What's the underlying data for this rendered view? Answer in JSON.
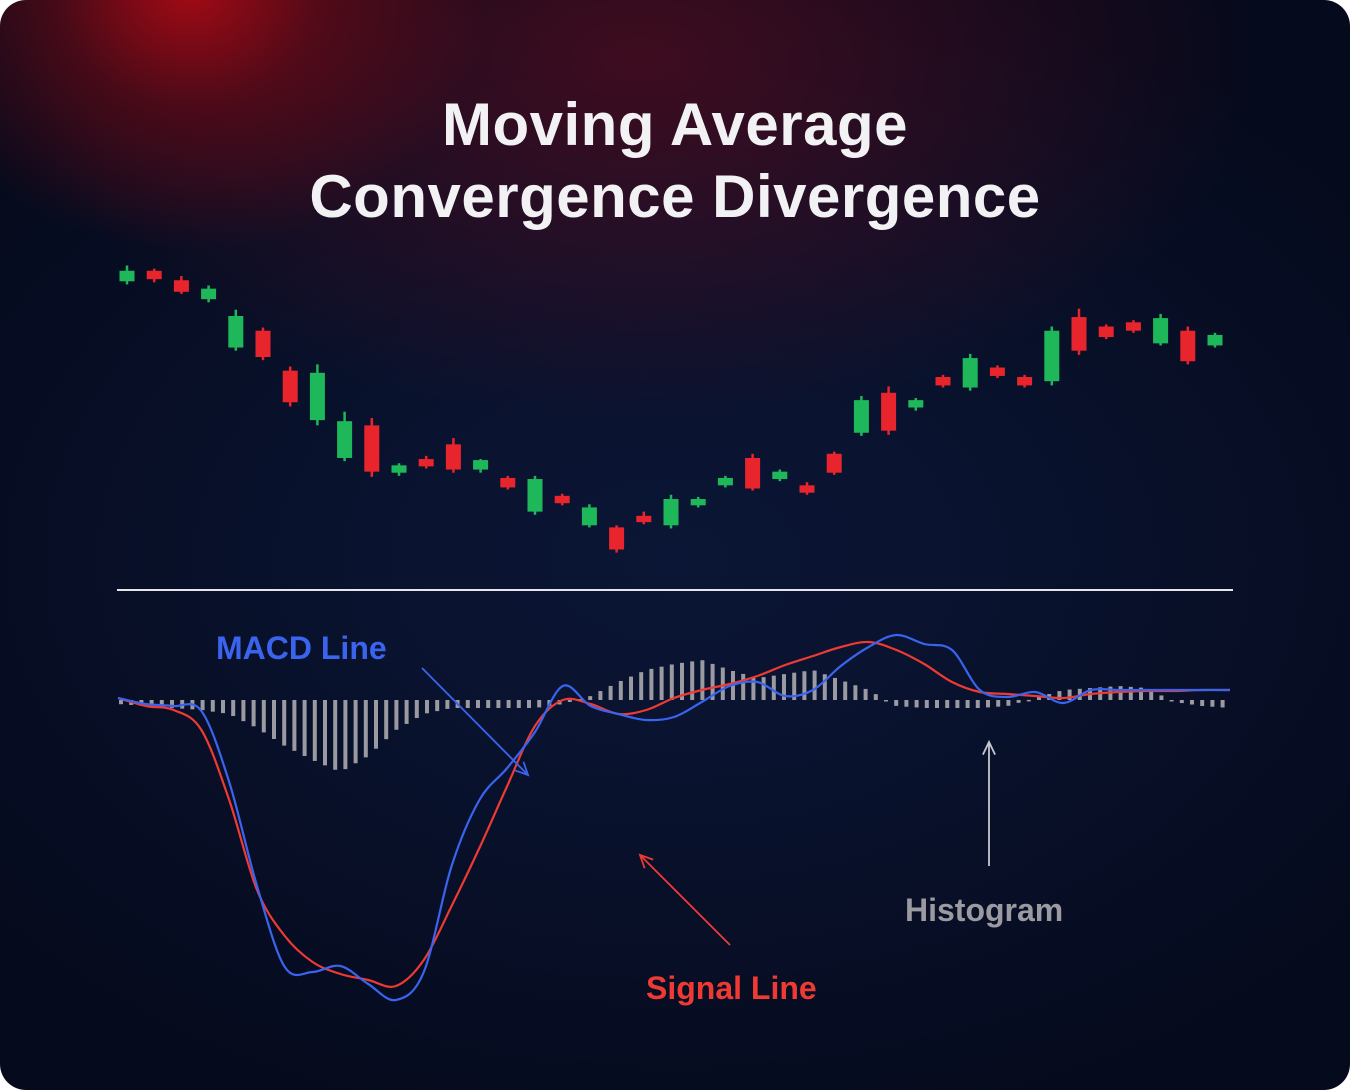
{
  "title_line1": "Moving Average",
  "title_line2": "Convergence Divergence",
  "colors": {
    "up": "#1eb85a",
    "down": "#e8252c",
    "macd": "#3a63ee",
    "signal": "#ee3a33",
    "histogram": "#9a9aa0",
    "divider": "#e6e6ea"
  },
  "chart_data": [
    {
      "type": "candlestick",
      "candles": [
        {
          "open": 25.5,
          "close": 26.5,
          "high": 27.0,
          "low": 25.2
        },
        {
          "open": 26.5,
          "close": 25.7,
          "high": 26.7,
          "low": 25.4
        },
        {
          "open": 25.6,
          "close": 24.5,
          "high": 26.0,
          "low": 24.3
        },
        {
          "open": 23.8,
          "close": 24.8,
          "high": 25.1,
          "low": 23.5
        },
        {
          "open": 19.2,
          "close": 22.2,
          "high": 22.8,
          "low": 18.9
        },
        {
          "open": 20.8,
          "close": 18.3,
          "high": 21.1,
          "low": 18.0
        },
        {
          "open": 17.0,
          "close": 14.0,
          "high": 17.4,
          "low": 13.6
        },
        {
          "open": 12.3,
          "close": 16.8,
          "high": 17.6,
          "low": 11.8
        },
        {
          "open": 8.7,
          "close": 12.2,
          "high": 13.1,
          "low": 8.4
        },
        {
          "open": 11.8,
          "close": 7.4,
          "high": 12.5,
          "low": 6.9
        },
        {
          "open": 7.3,
          "close": 8.0,
          "high": 8.2,
          "low": 7.0
        },
        {
          "open": 8.6,
          "close": 7.9,
          "high": 8.9,
          "low": 7.7
        },
        {
          "open": 10.0,
          "close": 7.6,
          "high": 10.6,
          "low": 7.3
        },
        {
          "open": 7.6,
          "close": 8.5,
          "high": 8.6,
          "low": 7.3
        },
        {
          "open": 6.8,
          "close": 5.9,
          "high": 7.0,
          "low": 5.7
        },
        {
          "open": 3.6,
          "close": 6.7,
          "high": 7.0,
          "low": 3.3
        },
        {
          "open": 5.1,
          "close": 4.4,
          "high": 5.3,
          "low": 4.2
        },
        {
          "open": 2.3,
          "close": 4.0,
          "high": 4.3,
          "low": 2.1
        },
        {
          "open": 2.1,
          "close": 0.0,
          "high": 2.3,
          "low": -0.3
        },
        {
          "open": 3.2,
          "close": 2.6,
          "high": 3.6,
          "low": 2.4
        },
        {
          "open": 2.3,
          "close": 4.8,
          "high": 5.2,
          "low": 2.0
        },
        {
          "open": 4.2,
          "close": 4.8,
          "high": 5.0,
          "low": 4.0
        },
        {
          "open": 6.1,
          "close": 6.8,
          "high": 7.0,
          "low": 5.9
        },
        {
          "open": 8.7,
          "close": 5.8,
          "high": 9.1,
          "low": 5.6
        },
        {
          "open": 6.7,
          "close": 7.4,
          "high": 7.6,
          "low": 6.5
        },
        {
          "open": 6.1,
          "close": 5.4,
          "high": 6.4,
          "low": 5.2
        },
        {
          "open": 9.1,
          "close": 7.3,
          "high": 9.3,
          "low": 7.1
        },
        {
          "open": 11.1,
          "close": 14.2,
          "high": 14.6,
          "low": 10.8
        },
        {
          "open": 14.9,
          "close": 11.3,
          "high": 15.5,
          "low": 10.9
        },
        {
          "open": 13.5,
          "close": 14.2,
          "high": 14.4,
          "low": 13.2
        },
        {
          "open": 16.4,
          "close": 15.6,
          "high": 16.6,
          "low": 15.4
        },
        {
          "open": 15.4,
          "close": 18.2,
          "high": 18.6,
          "low": 15.1
        },
        {
          "open": 17.3,
          "close": 16.5,
          "high": 17.5,
          "low": 16.3
        },
        {
          "open": 16.4,
          "close": 15.6,
          "high": 16.6,
          "low": 15.4
        },
        {
          "open": 16.0,
          "close": 20.8,
          "high": 21.2,
          "low": 15.6
        },
        {
          "open": 22.1,
          "close": 18.9,
          "high": 22.9,
          "low": 18.5
        },
        {
          "open": 21.2,
          "close": 20.2,
          "high": 21.4,
          "low": 20.0
        },
        {
          "open": 21.6,
          "close": 20.8,
          "high": 21.8,
          "low": 20.6
        },
        {
          "open": 19.6,
          "close": 22.0,
          "high": 22.4,
          "low": 19.4
        },
        {
          "open": 20.8,
          "close": 17.9,
          "high": 21.2,
          "low": 17.6
        },
        {
          "open": 19.4,
          "close": 20.4,
          "high": 20.6,
          "low": 19.2
        }
      ],
      "ylim": [
        -1,
        28
      ]
    },
    {
      "type": "line",
      "ylim": [
        -32,
        10
      ],
      "x": [
        0,
        1,
        2,
        3,
        4,
        5,
        6,
        7,
        8,
        9,
        10,
        11,
        12,
        13,
        14,
        15,
        16,
        17,
        18,
        19,
        20,
        21,
        22,
        23,
        24,
        25,
        26,
        27,
        28,
        29,
        30,
        31,
        32,
        33,
        34,
        35,
        36,
        37,
        38,
        39,
        40
      ],
      "series": [
        {
          "name": "MACD Line",
          "values": [
            0.2,
            -0.4,
            -0.6,
            -1.1,
            -8.2,
            -18.6,
            -26.7,
            -27.2,
            -26.6,
            -28.4,
            -30.0,
            -27.2,
            -16.6,
            -10.0,
            -6.8,
            -3.2,
            1.4,
            -0.6,
            -1.4,
            -2.0,
            -1.7,
            -0.2,
            1.4,
            1.8,
            0.4,
            1.0,
            3.4,
            5.3,
            6.5,
            5.6,
            5.0,
            1.0,
            0.3,
            0.8,
            -0.3,
            1.0,
            1.0,
            1.0,
            1.0,
            1.0,
            1.0
          ]
        },
        {
          "name": "Signal Line",
          "values": [
            0.2,
            -0.6,
            -1.0,
            -3.0,
            -10.0,
            -19.0,
            -23.6,
            -26.2,
            -27.4,
            -28.0,
            -28.6,
            -26.0,
            -20.6,
            -14.8,
            -8.6,
            -2.6,
            0.0,
            -0.4,
            -1.4,
            -1.0,
            0.2,
            1.0,
            1.6,
            2.4,
            3.5,
            4.4,
            5.3,
            5.8,
            5.0,
            3.6,
            1.8,
            0.8,
            0.6,
            0.4,
            0.2,
            0.6,
            0.8,
            0.9,
            0.9,
            1.0,
            1.0
          ]
        },
        {
          "name": "Histogram",
          "values": [
            -0.4,
            -0.6,
            -0.8,
            -1.0,
            -1.4,
            -2.8,
            -4.6,
            -6.0,
            -7.2,
            -5.6,
            -3.0,
            -1.4,
            -0.8,
            -0.8,
            -0.8,
            -0.8,
            -0.4,
            0.4,
            1.8,
            3.0,
            3.6,
            4.0,
            3.0,
            2.2,
            2.6,
            3.0,
            2.0,
            1.0,
            -0.6,
            -0.8,
            -0.8,
            -0.8,
            -0.6,
            0.2,
            1.0,
            1.2,
            1.4,
            1.2,
            -0.2,
            -0.6,
            -0.8
          ]
        }
      ]
    }
  ],
  "labels": {
    "macd": "MACD Line",
    "signal": "Signal Line",
    "histogram": "Histogram"
  }
}
